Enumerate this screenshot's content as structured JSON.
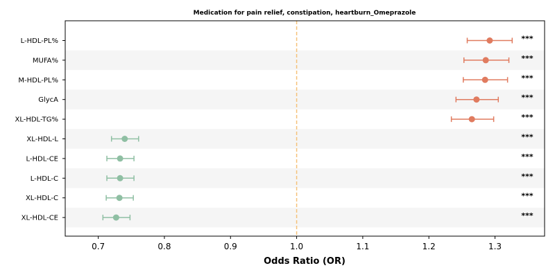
{
  "chart_data": {
    "type": "forest",
    "title": "Medication for pain relief, constipation, heartburn_Omeprazole",
    "xlabel": "Odds Ratio (OR)",
    "xlim": [
      0.65,
      1.375
    ],
    "xticks": [
      "0.7",
      "0.8",
      "0.9",
      "1.0",
      "1.1",
      "1.2",
      "1.3"
    ],
    "reference_line": 1.0,
    "colors": {
      "positive": "#e07b5f",
      "negative": "#8fbfa3",
      "reference": "#f5c27a",
      "band": "#f5f5f5"
    },
    "rows": [
      {
        "label": "L-HDL-PL%",
        "or": 1.292,
        "lo": 1.258,
        "hi": 1.326,
        "sig": "***"
      },
      {
        "label": "MUFA%",
        "or": 1.286,
        "lo": 1.253,
        "hi": 1.321,
        "sig": "***"
      },
      {
        "label": "M-HDL-PL%",
        "or": 1.285,
        "lo": 1.252,
        "hi": 1.319,
        "sig": "***"
      },
      {
        "label": "GlycA",
        "or": 1.272,
        "lo": 1.241,
        "hi": 1.305,
        "sig": "***"
      },
      {
        "label": "XL-HDL-TG%",
        "or": 1.265,
        "lo": 1.234,
        "hi": 1.298,
        "sig": "***"
      },
      {
        "label": "XL-HDL-L",
        "or": 0.74,
        "lo": 0.72,
        "hi": 0.761,
        "sig": "***"
      },
      {
        "label": "L-HDL-CE",
        "or": 0.733,
        "lo": 0.713,
        "hi": 0.754,
        "sig": "***"
      },
      {
        "label": "L-HDL-C",
        "or": 0.733,
        "lo": 0.713,
        "hi": 0.754,
        "sig": "***"
      },
      {
        "label": "XL-HDL-C",
        "or": 0.732,
        "lo": 0.712,
        "hi": 0.753,
        "sig": "***"
      },
      {
        "label": "XL-HDL-CE",
        "or": 0.727,
        "lo": 0.707,
        "hi": 0.748,
        "sig": "***"
      }
    ]
  }
}
